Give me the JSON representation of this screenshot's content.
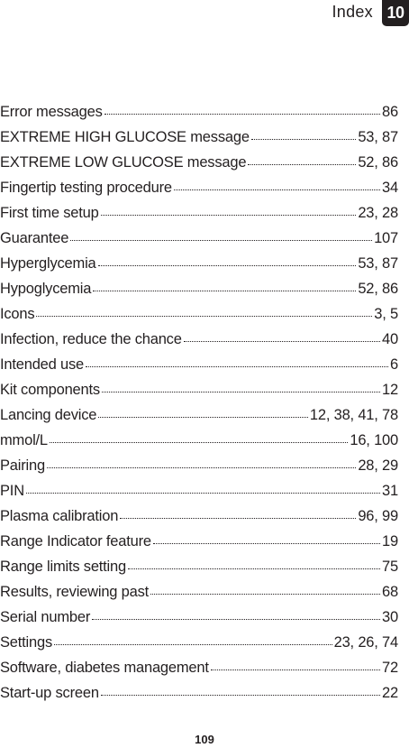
{
  "header": {
    "title": "Index",
    "chapter": "10"
  },
  "entries": [
    {
      "term": "Error messages",
      "pages": "86"
    },
    {
      "term": "EXTREME HIGH GLUCOSE message",
      "pages": "53, 87"
    },
    {
      "term": "EXTREME LOW GLUCOSE message",
      "pages": "52, 86"
    },
    {
      "term": "Fingertip testing procedure",
      "pages": "34"
    },
    {
      "term": "First time setup",
      "pages": "23, 28"
    },
    {
      "term": "Guarantee",
      "pages": "107"
    },
    {
      "term": "Hyperglycemia",
      "pages": "53, 87"
    },
    {
      "term": "Hypoglycemia",
      "pages": "52, 86"
    },
    {
      "term": "Icons",
      "pages": "3, 5"
    },
    {
      "term": "Infection, reduce the chance",
      "pages": "40"
    },
    {
      "term": "Intended use",
      "pages": "6"
    },
    {
      "term": "Kit components",
      "pages": "12"
    },
    {
      "term": "Lancing device",
      "pages": "12, 38, 41, 78"
    },
    {
      "term": "mmol/L",
      "pages": "16, 100"
    },
    {
      "term": "Pairing",
      "pages": "28, 29"
    },
    {
      "term": "PIN",
      "pages": "31"
    },
    {
      "term": "Plasma calibration",
      "pages": "96, 99"
    },
    {
      "term": "Range Indicator feature",
      "pages": "19"
    },
    {
      "term": "Range limits setting",
      "pages": "75"
    },
    {
      "term": "Results, reviewing past",
      "pages": "68"
    },
    {
      "term": "Serial number",
      "pages": "30"
    },
    {
      "term": "Settings",
      "pages": "23, 26, 74"
    },
    {
      "term": "Software, diabetes management",
      "pages": "72"
    },
    {
      "term": "Start-up screen",
      "pages": "22"
    }
  ],
  "footer": {
    "page_number": "109"
  }
}
